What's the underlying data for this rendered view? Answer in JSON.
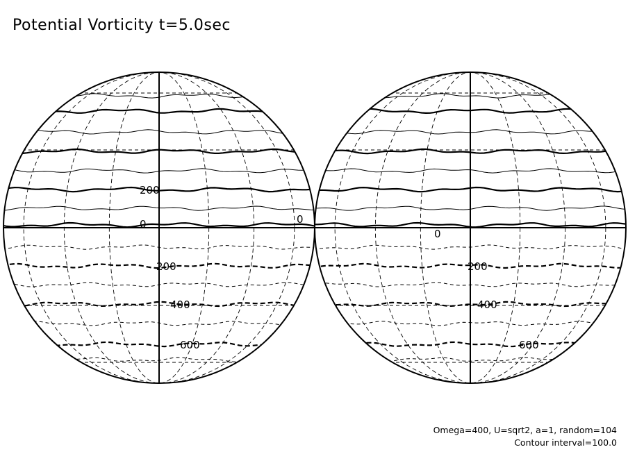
{
  "title": "Potential Vorticity t=5.0sec",
  "footer": {
    "params": "Omega=400, U=sqrt2, a=1, random=104",
    "interval": "Contour interval=100.0"
  },
  "chart_data": {
    "type": "heatmap",
    "projection": "orthographic globes (two hemispheres)",
    "title": "Potential Vorticity t=5.0sec",
    "contour_interval": 100.0,
    "levels": [
      -700,
      -600,
      -500,
      -400,
      -300,
      -200,
      -100,
      0,
      100,
      200,
      300,
      400,
      500,
      600,
      700
    ],
    "fill_colors": {
      "positive": [
        "#ffffff",
        "#ffe9e9",
        "#ffcfcf",
        "#ffb3b3",
        "#ff9a9a",
        "#ff8080",
        "#ff6666",
        "#ff4646"
      ],
      "negative": [
        "#ffffff",
        "#ececff",
        "#d2d2ff",
        "#b6b6ff",
        "#9a9aff",
        "#7e7eff",
        "#6262ff",
        "#4646ff"
      ]
    },
    "globes": [
      {
        "name": "left",
        "contour_labels": [
          {
            "text": "200",
            "lat_band": 200
          },
          {
            "text": "0",
            "lat_band": 0
          },
          {
            "text": "0",
            "lat_band": 0
          },
          {
            "text": "200",
            "lat_band": -200
          },
          {
            "text": "400",
            "lat_band": -400
          },
          {
            "text": "600",
            "lat_band": -600
          }
        ]
      },
      {
        "name": "right",
        "contour_labels": [
          {
            "text": "0",
            "lat_band": 0
          },
          {
            "text": "200",
            "lat_band": -200
          },
          {
            "text": "400",
            "lat_band": -400
          },
          {
            "text": "600",
            "lat_band": -600
          }
        ]
      }
    ]
  }
}
